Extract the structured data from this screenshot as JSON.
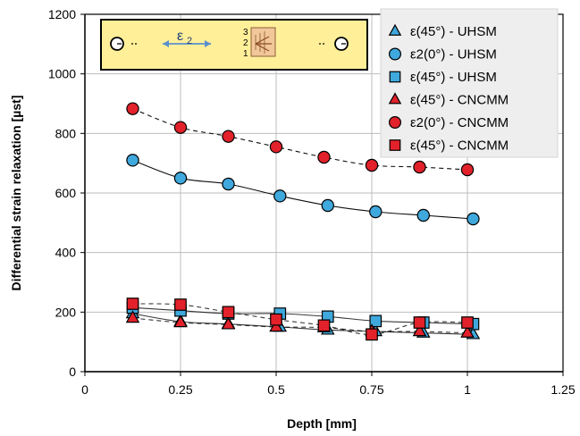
{
  "chart_data": {
    "type": "scatter",
    "xlabel": "Depth [mm]",
    "ylabel": "Differential strain relaxation [µst]",
    "xlim": [
      0,
      1.25
    ],
    "ylim": [
      0,
      1200
    ],
    "xticks": [
      "0",
      "0.25",
      "0.5",
      "0.75",
      "1",
      "1.25"
    ],
    "yticks": [
      "0",
      "200",
      "400",
      "600",
      "800",
      "1000",
      "1200"
    ],
    "grid": true,
    "legend_position": "top-right",
    "inset": {
      "label_main": "ε",
      "label_sub": "2",
      "gauge_numbers": [
        "3",
        "2",
        "1"
      ]
    },
    "series": [
      {
        "name": "ε(45°) - UHSM",
        "marker": "triangle",
        "color": "#3fa8dc",
        "line": "solid",
        "x": [
          0.125,
          0.25,
          0.375,
          0.51,
          0.635,
          0.76,
          0.885,
          1.015
        ],
        "y": [
          195,
          168,
          160,
          150,
          140,
          135,
          130,
          125
        ]
      },
      {
        "name": "ε2(0°) - UHSM",
        "marker": "circle",
        "color": "#3fa8dc",
        "line": "solid",
        "x": [
          0.125,
          0.25,
          0.375,
          0.51,
          0.635,
          0.76,
          0.885,
          1.015
        ],
        "y": [
          710,
          650,
          630,
          590,
          558,
          537,
          525,
          513
        ]
      },
      {
        "name": "ε(45°) - UHSM",
        "marker": "square",
        "color": "#3fa8dc",
        "line": "solid",
        "x": [
          0.125,
          0.25,
          0.375,
          0.51,
          0.635,
          0.76,
          0.885,
          1.015
        ],
        "y": [
          215,
          205,
          195,
          195,
          185,
          170,
          165,
          160
        ]
      },
      {
        "name": "ε(45°) - CNCMM",
        "marker": "triangle",
        "color": "#e2212a",
        "line": "dashed",
        "x": [
          0.125,
          0.25,
          0.375,
          0.5,
          0.625,
          0.75,
          0.875,
          1.0
        ],
        "y": [
          180,
          165,
          158,
          150,
          148,
          135,
          135,
          130
        ]
      },
      {
        "name": "ε2(0°) - CNCMM",
        "marker": "circle",
        "color": "#e2212a",
        "line": "dashed",
        "x": [
          0.125,
          0.25,
          0.375,
          0.5,
          0.625,
          0.75,
          0.875,
          1.0
        ],
        "y": [
          883,
          820,
          790,
          755,
          720,
          693,
          687,
          678
        ]
      },
      {
        "name": "ε(45°) - CNCMM",
        "marker": "square",
        "color": "#e2212a",
        "line": "dashed",
        "x": [
          0.125,
          0.25,
          0.375,
          0.5,
          0.625,
          0.75,
          0.875,
          1.0
        ],
        "y": [
          228,
          225,
          200,
          175,
          155,
          125,
          165,
          165
        ]
      }
    ]
  }
}
